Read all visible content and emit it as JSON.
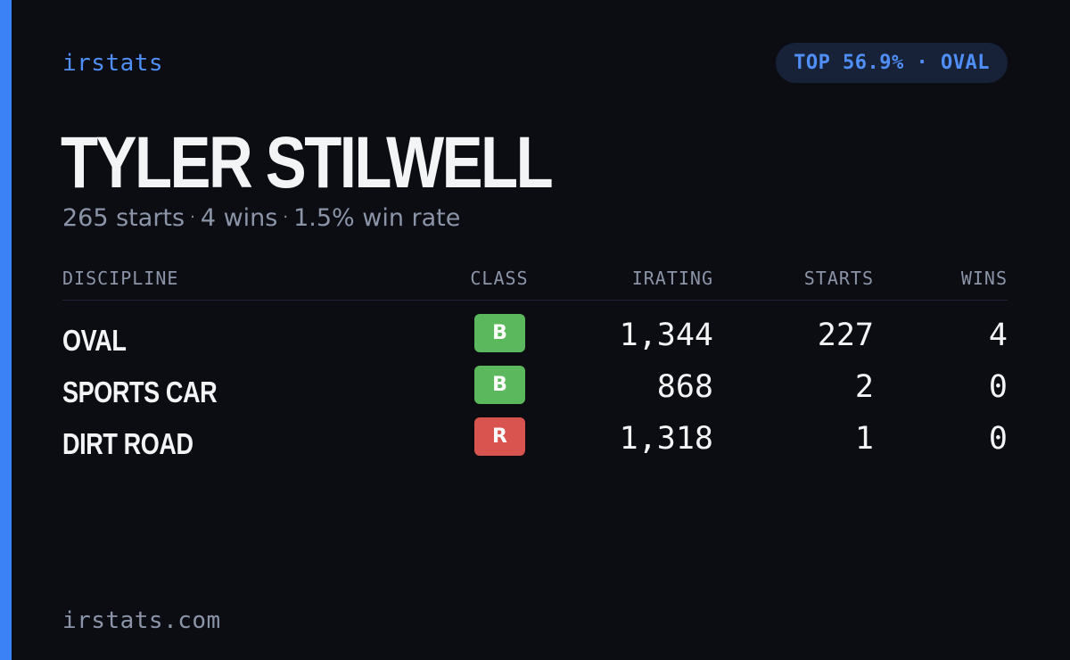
{
  "brand": "irstats",
  "rank_badge": "TOP 56.9% · OVAL",
  "driver": {
    "name": "TYLER STILWELL",
    "summary": {
      "starts": "265 starts",
      "wins": "4 wins",
      "win_rate": "1.5% win rate",
      "separator": "·"
    }
  },
  "table": {
    "headers": {
      "discipline": "DISCIPLINE",
      "class": "CLASS",
      "irating": "IRATING",
      "starts": "STARTS",
      "wins": "WINS"
    },
    "rows": [
      {
        "discipline": "OVAL",
        "class": "B",
        "class_color": "#5cb85c",
        "irating": "1,344",
        "starts": "227",
        "wins": "4"
      },
      {
        "discipline": "SPORTS CAR",
        "class": "B",
        "class_color": "#5cb85c",
        "irating": "868",
        "starts": "2",
        "wins": "0"
      },
      {
        "discipline": "DIRT ROAD",
        "class": "R",
        "class_color": "#d9534f",
        "irating": "1,318",
        "starts": "1",
        "wins": "0"
      }
    ]
  },
  "footer": {
    "url": "irstats.com"
  },
  "colors": {
    "accent": "#3b82f6",
    "background": "#0b0d13",
    "badge_bg": "#172239",
    "muted_text": "#8b95a7",
    "primary_text": "#f3f4f6"
  }
}
